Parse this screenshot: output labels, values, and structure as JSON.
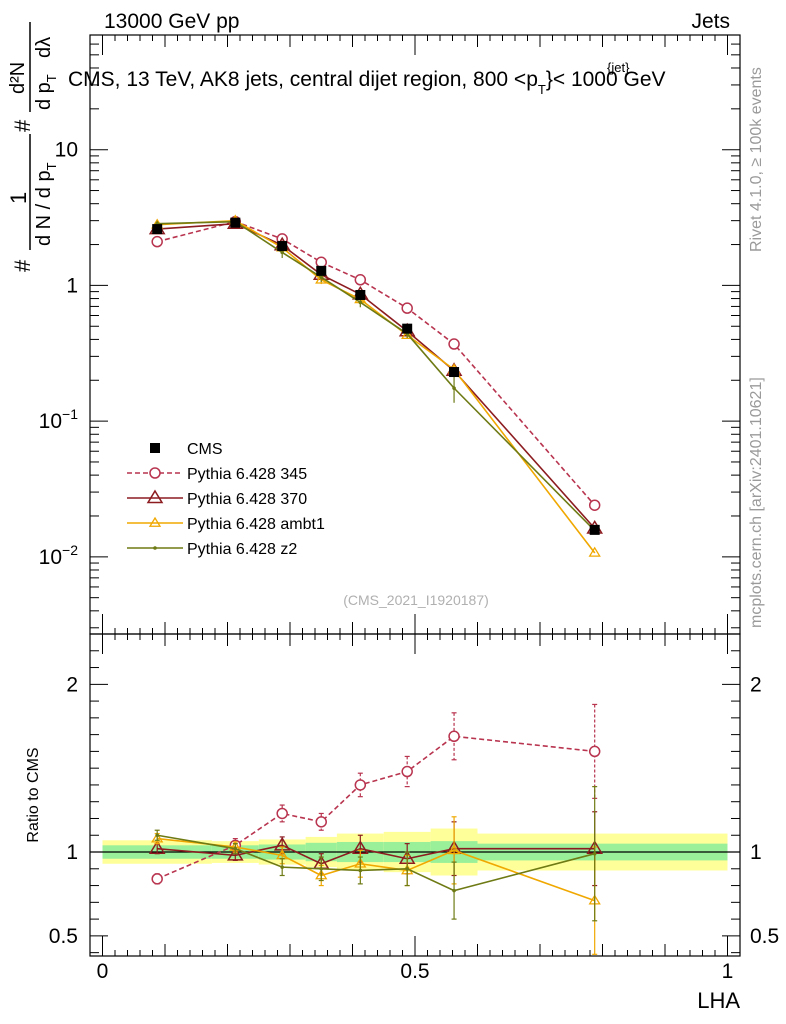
{
  "header": {
    "left": "13000 GeV pp",
    "right": "Jets",
    "title_main": "CMS, 13 TeV, AK8 jets, central dijet region, 800 <p",
    "title_sup": "{jet}",
    "title_sub": "T",
    "title_tail": "}< 1000 GeV"
  },
  "side_labels": {
    "rivet": "Rivet 4.1.0, ≥ 100k events",
    "mcplots": "mcplots.cern.ch [arXiv:2401.10621]"
  },
  "reference": "(CMS_2021_I1920187)",
  "ylabel": {
    "hash": "#",
    "one": "1",
    "dn_dpt": "d N / d p",
    "t": "T",
    "hash2": "#",
    "d2n": "d²N",
    "dpt": "d p",
    "dlambda": "dλ",
    "sub_t": "T"
  },
  "chart_data": {
    "type": "line",
    "xlabel": "LHA",
    "ratio_ylabel": "Ratio to CMS",
    "xlim": [
      -0.02,
      1.02
    ],
    "ylim_main": [
      0.0027,
      70
    ],
    "ylim_ratio": [
      0.38,
      2.3
    ],
    "x": [
      0.0875,
      0.2125,
      0.2875,
      0.35,
      0.4125,
      0.4875,
      0.5625,
      0.7875
    ],
    "main_ticks": [
      {
        "value": 0.01,
        "base": "10",
        "exp": "−2"
      },
      {
        "value": 0.1,
        "base": "10",
        "exp": "−1"
      },
      {
        "value": 1,
        "base": "1",
        "exp": ""
      },
      {
        "value": 10,
        "base": "10",
        "exp": ""
      }
    ],
    "ratio_ticks": [
      {
        "value": 0.5,
        "label": "0.5"
      },
      {
        "value": 1,
        "label": "1"
      },
      {
        "value": 2,
        "label": "2"
      }
    ],
    "x_ticks": [
      {
        "value": 0,
        "label": "0"
      },
      {
        "value": 0.5,
        "label": "0.5"
      },
      {
        "value": 1,
        "label": "1"
      }
    ],
    "cms": {
      "name": "CMS",
      "values": [
        2.6,
        2.9,
        1.95,
        1.28,
        0.85,
        0.48,
        0.23,
        0.0158
      ],
      "bins": [
        [
          0.0,
          0.175
        ],
        [
          0.175,
          0.25
        ],
        [
          0.25,
          0.325
        ],
        [
          0.325,
          0.375
        ],
        [
          0.375,
          0.45
        ],
        [
          0.45,
          0.525
        ],
        [
          0.525,
          0.6
        ],
        [
          0.6,
          1.0
        ]
      ],
      "band_green": [
        0.04,
        0.04,
        0.045,
        0.055,
        0.06,
        0.06,
        0.065,
        0.05
      ],
      "band_yellow": [
        0.07,
        0.065,
        0.075,
        0.09,
        0.11,
        0.12,
        0.14,
        0.11
      ]
    },
    "series": [
      {
        "name": "Pythia 6.428 345",
        "color": "#b8344f",
        "dash": true,
        "marker": "circle",
        "values": [
          2.1,
          2.95,
          2.2,
          1.48,
          1.1,
          0.68,
          0.37,
          0.024
        ],
        "errors": [
          0.05,
          0.06,
          0.08,
          0.07,
          0.06,
          0.06,
          0.05,
          0.004
        ],
        "ratio": [
          0.84,
          1.04,
          1.23,
          1.18,
          1.4,
          1.48,
          1.69,
          1.6
        ],
        "ratio_err": [
          0.03,
          0.04,
          0.05,
          0.05,
          0.07,
          0.09,
          0.14,
          0.28
        ]
      },
      {
        "name": "Pythia 6.428 370",
        "color": "#8c1c20",
        "dash": false,
        "marker": "triangle",
        "values": [
          2.6,
          2.85,
          1.98,
          1.2,
          0.86,
          0.46,
          0.235,
          0.0162
        ],
        "errors": [
          0.05,
          0.06,
          0.08,
          0.07,
          0.07,
          0.05,
          0.04,
          0.003
        ],
        "ratio": [
          1.02,
          0.98,
          1.04,
          0.93,
          1.02,
          0.96,
          1.02,
          1.02
        ],
        "ratio_err": [
          0.03,
          0.03,
          0.05,
          0.06,
          0.08,
          0.09,
          0.16,
          0.22
        ]
      },
      {
        "name": "Pythia 6.428 ambt1",
        "color": "#f0a800",
        "dash": false,
        "marker": "triangle-small",
        "values": [
          2.8,
          3.0,
          1.9,
          1.1,
          0.79,
          0.43,
          0.24,
          0.0107
        ],
        "errors": [
          0.05,
          0.06,
          0.08,
          0.07,
          0.07,
          0.06,
          0.05,
          0.004
        ],
        "ratio": [
          1.08,
          1.03,
          0.98,
          0.86,
          0.93,
          0.89,
          1.01,
          0.71
        ],
        "ratio_err": [
          0.03,
          0.03,
          0.05,
          0.06,
          0.08,
          0.09,
          0.2,
          0.32
        ]
      },
      {
        "name": "Pythia 6.428 z2",
        "color": "#6e7a14",
        "dash": false,
        "marker": "dot",
        "values": [
          2.85,
          2.95,
          1.75,
          1.15,
          0.75,
          0.44,
          0.175,
          0.0156
        ],
        "errors": [
          0.05,
          0.06,
          0.09,
          0.08,
          0.08,
          0.07,
          0.22,
          0.003
        ],
        "ratio": [
          1.1,
          1.02,
          0.91,
          0.9,
          0.89,
          0.9,
          0.77,
          0.99
        ],
        "ratio_err": [
          0.03,
          0.03,
          0.05,
          0.07,
          0.08,
          0.1,
          0.17,
          0.4
        ]
      }
    ]
  }
}
